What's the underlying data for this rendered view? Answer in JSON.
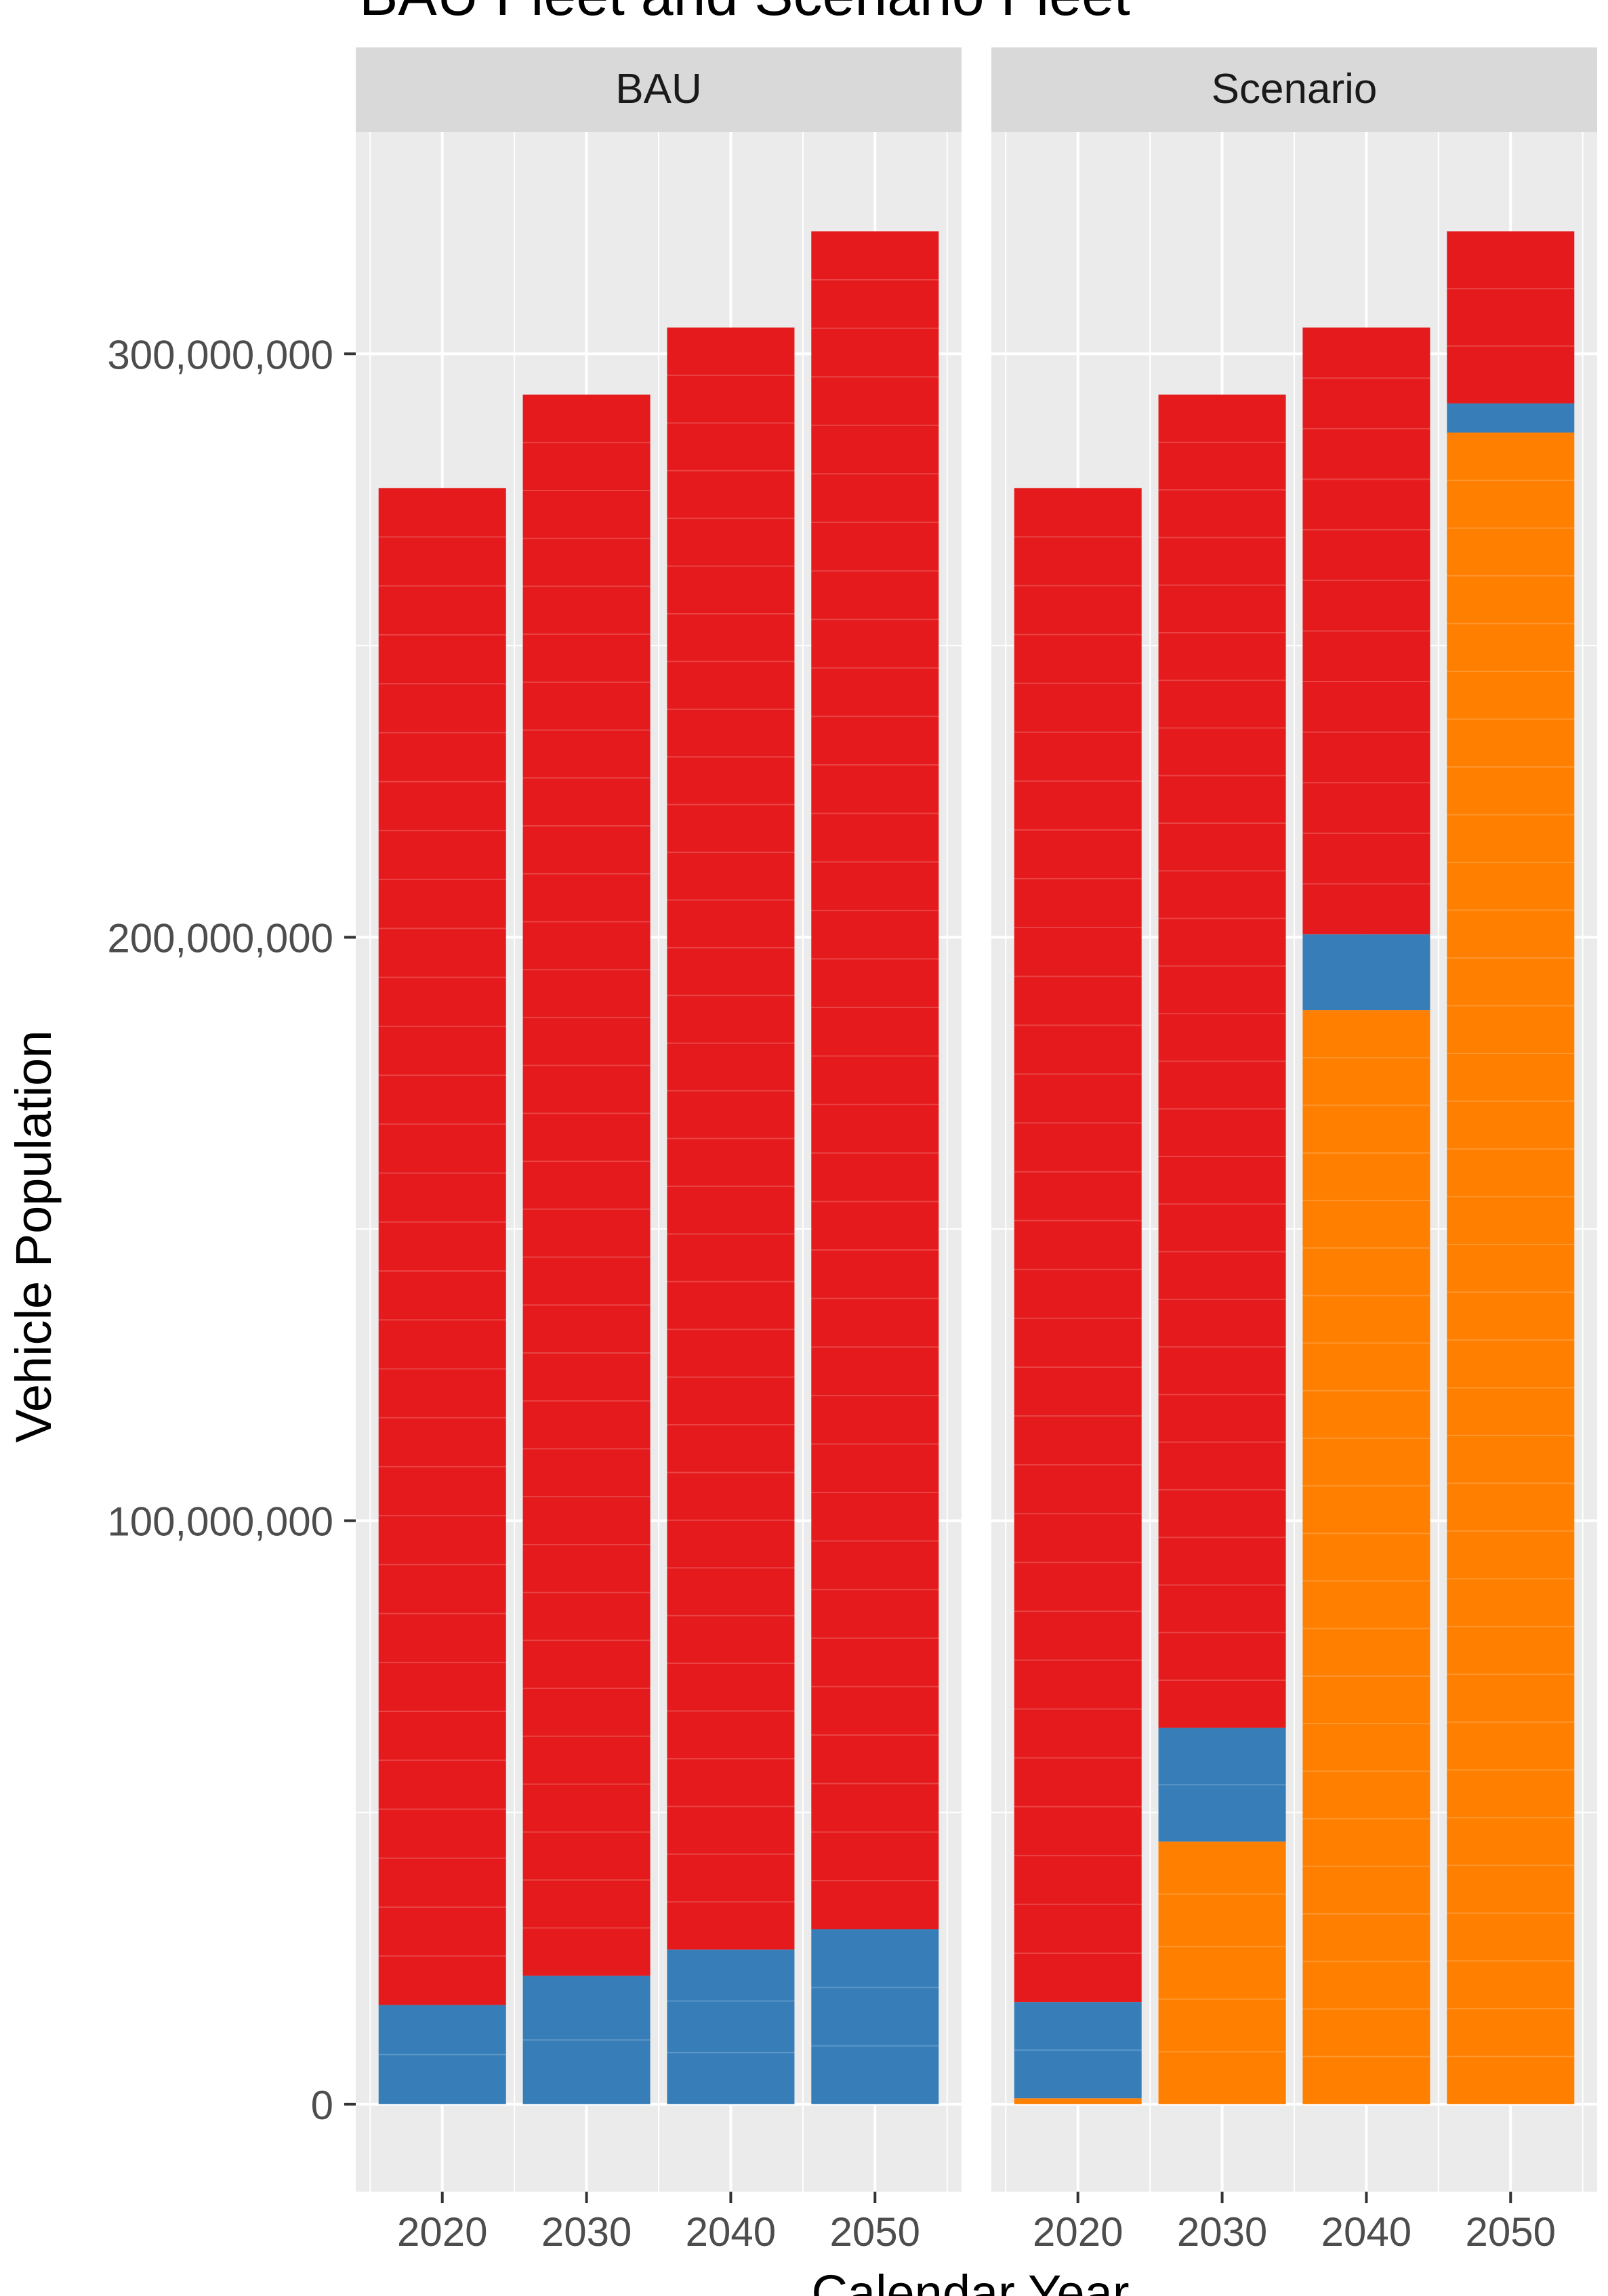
{
  "chart_data": {
    "type": "bar",
    "stacked": true,
    "title": "BAU Fleet and Scenario Fleet",
    "xlabel": "Calendar Year",
    "ylabel": "Vehicle Population",
    "ylim": [
      -15000000,
      338000000
    ],
    "yticks": [
      0,
      100000000,
      200000000,
      300000000
    ],
    "ytick_labels": [
      "0",
      "100,000,000",
      "200,000,000",
      "300,000,000"
    ],
    "grid": true,
    "categories": [
      "2020",
      "2030",
      "2040",
      "2050"
    ],
    "facets": [
      {
        "label": "BAU",
        "series": [
          {
            "color": "#FF7F00",
            "values": [
              0,
              0,
              0,
              0
            ]
          },
          {
            "color": "#377EB8",
            "values": [
              17000000,
              22000000,
              26500000,
              30000000
            ]
          },
          {
            "color": "#E41A1C",
            "values": [
              260000000,
              271000000,
              278000000,
              291000000
            ]
          }
        ]
      },
      {
        "label": "Scenario",
        "series": [
          {
            "color": "#FF7F00",
            "values": [
              1000000,
              45000000,
              187500000,
              286500000
            ]
          },
          {
            "color": "#377EB8",
            "values": [
              16500000,
              19500000,
              13000000,
              5000000
            ]
          },
          {
            "color": "#E41A1C",
            "values": [
              259500000,
              228500000,
              104000000,
              29500000
            ]
          }
        ]
      }
    ]
  }
}
